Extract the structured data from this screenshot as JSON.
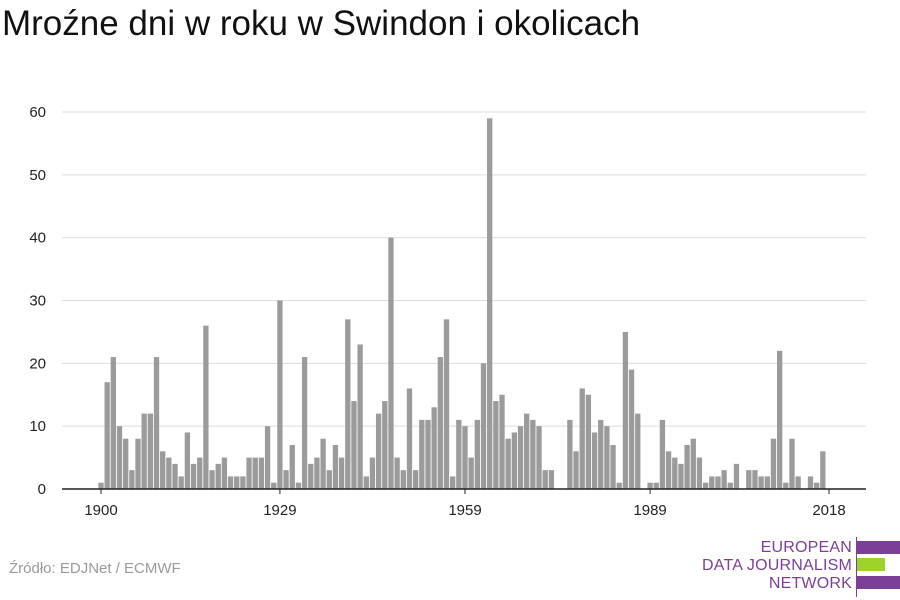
{
  "title": "Mroźne dni w roku w Swindon i okolicach",
  "source": "Źródło: EDJNet / ECMWF",
  "logo": {
    "line1": "EUROPEAN",
    "line2": "DATA JOURNALISM",
    "line3": "NETWORK",
    "colors": {
      "purple": "#7b3f98",
      "green": "#9cd22a"
    }
  },
  "colors": {
    "bar": "#9b9b9b",
    "grid": "#dddddd",
    "axis": "#222222",
    "text": "#222222"
  },
  "chart_data": {
    "type": "bar",
    "title": "Mroźne dni w roku w Swindon i okolicach",
    "xlabel": "",
    "ylabel": "",
    "ylim": [
      0,
      60
    ],
    "yticks": [
      "0",
      "10",
      "20",
      "30",
      "40",
      "50",
      "60"
    ],
    "xticks": [
      "1900",
      "1929",
      "1959",
      "1989",
      "2018"
    ],
    "grid": true,
    "x": [
      1900,
      1901,
      1902,
      1903,
      1904,
      1905,
      1906,
      1907,
      1908,
      1909,
      1910,
      1911,
      1912,
      1913,
      1914,
      1915,
      1916,
      1917,
      1918,
      1919,
      1920,
      1921,
      1922,
      1923,
      1924,
      1925,
      1926,
      1927,
      1928,
      1929,
      1930,
      1931,
      1932,
      1933,
      1934,
      1935,
      1936,
      1937,
      1938,
      1939,
      1940,
      1941,
      1942,
      1943,
      1944,
      1945,
      1946,
      1947,
      1948,
      1949,
      1950,
      1951,
      1952,
      1953,
      1954,
      1955,
      1956,
      1957,
      1958,
      1959,
      1960,
      1961,
      1962,
      1963,
      1964,
      1965,
      1966,
      1967,
      1968,
      1969,
      1970,
      1971,
      1972,
      1973,
      1974,
      1975,
      1976,
      1977,
      1978,
      1979,
      1980,
      1981,
      1982,
      1983,
      1984,
      1985,
      1986,
      1987,
      1988,
      1989,
      1990,
      1991,
      1992,
      1993,
      1994,
      1995,
      1996,
      1997,
      1998,
      1999,
      2000,
      2001,
      2002,
      2003,
      2004,
      2005,
      2006,
      2007,
      2008,
      2009,
      2010,
      2011,
      2012,
      2013,
      2014,
      2015,
      2016,
      2017,
      2018
    ],
    "values": [
      1,
      17,
      21,
      10,
      8,
      3,
      8,
      12,
      12,
      21,
      6,
      5,
      4,
      2,
      9,
      4,
      5,
      26,
      3,
      4,
      5,
      2,
      2,
      2,
      5,
      5,
      5,
      10,
      1,
      30,
      3,
      7,
      1,
      21,
      4,
      5,
      8,
      3,
      7,
      5,
      27,
      14,
      23,
      2,
      5,
      12,
      14,
      40,
      5,
      3,
      16,
      3,
      11,
      11,
      13,
      21,
      27,
      2,
      11,
      10,
      5,
      11,
      20,
      59,
      14,
      15,
      8,
      9,
      10,
      12,
      11,
      10,
      3,
      3,
      0,
      0,
      11,
      6,
      16,
      15,
      9,
      11,
      10,
      7,
      1,
      25,
      19,
      12,
      0,
      1,
      1,
      11,
      6,
      5,
      4,
      7,
      8,
      5,
      1,
      2,
      2,
      3,
      1,
      4,
      0,
      3,
      3,
      2,
      2,
      8,
      22,
      1,
      8,
      2,
      0,
      2,
      1,
      6,
      0
    ]
  }
}
